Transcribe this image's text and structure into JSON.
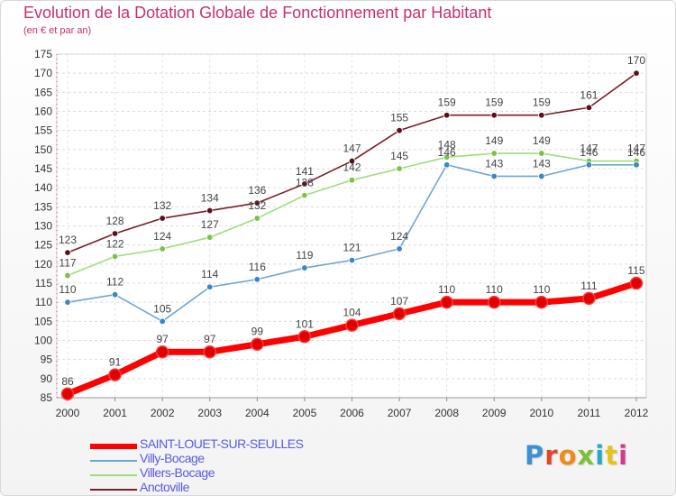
{
  "chart_data": {
    "type": "line",
    "title": "Evolution de la Dotation Globale de Fonctionnement par Habitant",
    "subtitle": "(en € et par an)",
    "xlabel": "",
    "ylabel": "",
    "categories": [
      "2000",
      "2001",
      "2002",
      "2003",
      "2004",
      "2005",
      "2006",
      "2007",
      "2008",
      "2009",
      "2010",
      "2011",
      "2012"
    ],
    "ylim": [
      85,
      175
    ],
    "yticks": [
      85,
      90,
      95,
      100,
      105,
      110,
      115,
      120,
      125,
      130,
      135,
      140,
      145,
      150,
      155,
      160,
      165,
      170,
      175
    ],
    "grid": true,
    "legend_position": "bottom-left",
    "series": [
      {
        "name": "Anctoville",
        "color": "#7a1e2a",
        "marker": "#5a1018",
        "values": [
          123,
          128,
          132,
          134,
          136,
          141,
          147,
          155,
          159,
          159,
          159,
          161,
          170
        ]
      },
      {
        "name": "Villers-Bocage",
        "color": "#9edd7a",
        "marker": "#7ac24a",
        "values": [
          117,
          122,
          124,
          127,
          132,
          138,
          142,
          145,
          148,
          149,
          149,
          147,
          147
        ]
      },
      {
        "name": "Villy-Bocage",
        "color": "#6ea6d2",
        "marker": "#3a86c8",
        "values": [
          110,
          112,
          105,
          114,
          116,
          119,
          121,
          124,
          146,
          143,
          143,
          146,
          146
        ]
      },
      {
        "name": "SAINT-LOUET-SUR-SEULLES",
        "color": "#ff0000",
        "marker": "#e00000",
        "values": [
          86,
          91,
          97,
          97,
          99,
          101,
          104,
          107,
          110,
          110,
          110,
          111,
          115
        ]
      }
    ]
  },
  "legend": [
    {
      "name": "SAINT-LOUET-SUR-SEULLES",
      "color": "#ff0000"
    },
    {
      "name": "Villy-Bocage",
      "color": "#6ea6d2"
    },
    {
      "name": "Villers-Bocage",
      "color": "#9edd7a"
    },
    {
      "name": "Anctoville",
      "color": "#7a1e2a"
    }
  ],
  "logo": {
    "text": "Proxiti",
    "letters": [
      "P",
      "r",
      "o",
      "x",
      "i",
      "t",
      "i"
    ]
  }
}
